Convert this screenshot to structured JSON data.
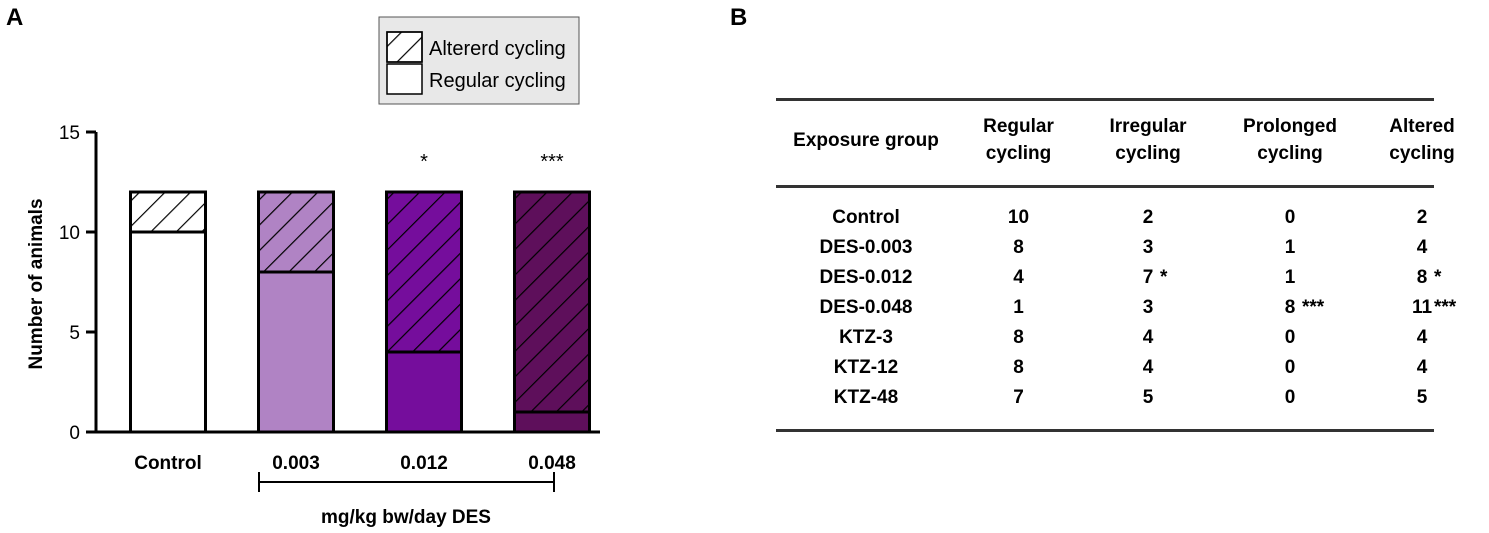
{
  "panels": {
    "a": "A",
    "b": "B"
  },
  "chart_data": {
    "type": "bar",
    "stacked": true,
    "categories": [
      "Control",
      "0.003",
      "0.012",
      "0.048"
    ],
    "series": [
      {
        "name": "Regular cycling",
        "values": [
          10,
          8,
          4,
          1
        ],
        "pattern": "solid"
      },
      {
        "name": "Altererd cycling",
        "values": [
          2,
          4,
          8,
          11
        ],
        "pattern": "hatched"
      }
    ],
    "bar_colors": [
      "#ffffff",
      "#b083c4",
      "#750d9c",
      "#5e0f5b"
    ],
    "significance": [
      "",
      "",
      "*",
      "***"
    ],
    "ylabel": "Number of animals",
    "xlabel": "mg/kg bw/day DES",
    "ylim": [
      0,
      15
    ],
    "yticks": [
      0,
      5,
      10,
      15
    ],
    "legend": [
      "Altererd cycling",
      "Regular cycling"
    ],
    "legend_position": "top-right",
    "legend_background": "#e8e8e8"
  },
  "table": {
    "headers": [
      [
        "Exposure group"
      ],
      [
        "Regular",
        "cycling"
      ],
      [
        "Irregular",
        "cycling"
      ],
      [
        "Prolonged",
        "cycling"
      ],
      [
        "Altered",
        "cycling"
      ]
    ],
    "rows": [
      {
        "group": "Control",
        "regular": "10",
        "irregular": "2",
        "irregular_sig": "",
        "prolonged": "0",
        "prolonged_sig": "",
        "altered": "2",
        "altered_sig": ""
      },
      {
        "group": "DES-0.003",
        "regular": "8",
        "irregular": "3",
        "irregular_sig": "",
        "prolonged": "1",
        "prolonged_sig": "",
        "altered": "4",
        "altered_sig": ""
      },
      {
        "group": "DES-0.012",
        "regular": "4",
        "irregular": "7",
        "irregular_sig": "*",
        "prolonged": "1",
        "prolonged_sig": "",
        "altered": "8",
        "altered_sig": "*"
      },
      {
        "group": "DES-0.048",
        "regular": "1",
        "irregular": "3",
        "irregular_sig": "",
        "prolonged": "8",
        "prolonged_sig": "***",
        "altered": "11",
        "altered_sig": "***"
      },
      {
        "group": "KTZ-3",
        "regular": "8",
        "irregular": "4",
        "irregular_sig": "",
        "prolonged": "0",
        "prolonged_sig": "",
        "altered": "4",
        "altered_sig": ""
      },
      {
        "group": "KTZ-12",
        "regular": "8",
        "irregular": "4",
        "irregular_sig": "",
        "prolonged": "0",
        "prolonged_sig": "",
        "altered": "4",
        "altered_sig": ""
      },
      {
        "group": "KTZ-48",
        "regular": "7",
        "irregular": "5",
        "irregular_sig": "",
        "prolonged": "0",
        "prolonged_sig": "",
        "altered": "5",
        "altered_sig": ""
      }
    ]
  }
}
